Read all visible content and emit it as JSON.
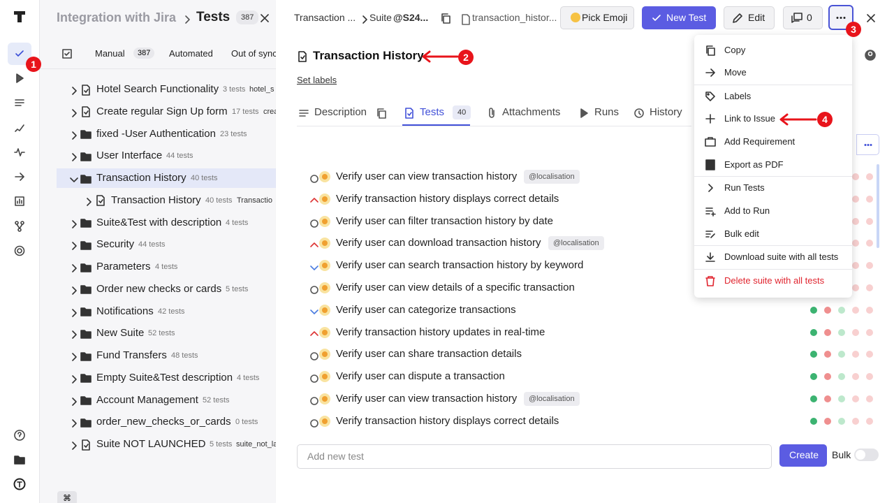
{
  "sidebar": {
    "badge": "1"
  },
  "left_panel": {
    "project": "Integration with Jira",
    "section": "Tests",
    "count": 387,
    "shortcut": "⌘",
    "tabs": [
      {
        "label": "Manual",
        "count": 387
      },
      {
        "label": "Automated"
      },
      {
        "label": "Out of sync"
      }
    ],
    "tree": [
      {
        "name": "Hotel Search Functionality",
        "count": "3 tests",
        "code": "hotel_s",
        "kind": "suite"
      },
      {
        "name": "Create regular Sign Up form",
        "count": "17 tests",
        "code": "crea",
        "kind": "suite"
      },
      {
        "name": "fixed -User Authentication",
        "count": "23 tests",
        "kind": "folder"
      },
      {
        "name": "User Interface",
        "count": "44 tests",
        "kind": "folder"
      },
      {
        "name": "Transaction History",
        "count": "40 tests",
        "kind": "folder",
        "expanded": true,
        "selected": true
      },
      {
        "name": "Transaction History",
        "count": "40 tests",
        "code": "Transactio",
        "kind": "suite",
        "level": 1
      },
      {
        "name": "Suite&Test with description",
        "count": "4 tests",
        "kind": "folder"
      },
      {
        "name": "Security",
        "count": "44 tests",
        "kind": "folder"
      },
      {
        "name": "Parameters",
        "count": "4 tests",
        "kind": "folder"
      },
      {
        "name": "Order new checks or cards",
        "count": "5 tests",
        "kind": "folder"
      },
      {
        "name": "Notifications",
        "count": "42 tests",
        "kind": "folder"
      },
      {
        "name": "New Suite",
        "count": "52 tests",
        "kind": "folder"
      },
      {
        "name": "Fund Transfers",
        "count": "48 tests",
        "kind": "folder"
      },
      {
        "name": "Empty Suite&Test description",
        "count": "4 tests",
        "kind": "folder"
      },
      {
        "name": "Account Management",
        "count": "52 tests",
        "kind": "folder"
      },
      {
        "name": "order_new_checks_or_cards",
        "count": "0 tests",
        "kind": "folder"
      },
      {
        "name": "Suite NOT LAUNCHED",
        "count": "5 tests",
        "code": "suite_not_lau",
        "kind": "suite"
      }
    ]
  },
  "panel": {
    "breadcrumb": {
      "parent": "Transaction ...",
      "suite_label": "Suite",
      "suite_code": "@S24...",
      "file": "transaction_histor..."
    },
    "buttons": {
      "emoji": "Pick Emoji",
      "new_test": "New Test",
      "edit": "Edit",
      "comments": 0
    },
    "title": "Transaction History",
    "set_labels": "Set labels",
    "tabs": [
      {
        "label": "Description"
      },
      {
        "label": "Tests",
        "count": 40,
        "active": true
      },
      {
        "label": "Attachments"
      },
      {
        "label": "Runs"
      },
      {
        "label": "History"
      }
    ],
    "tests": [
      {
        "title": "Verify user can view transaction history",
        "tag": "@localisation",
        "priority": "normal"
      },
      {
        "title": "Verify transaction history displays correct details",
        "priority": "high"
      },
      {
        "title": "Verify user can filter transaction history by date",
        "priority": "normal"
      },
      {
        "title": "Verify user can download transaction history",
        "tag": "@localisation",
        "priority": "high"
      },
      {
        "title": "Verify user can search transaction history by keyword",
        "priority": "low"
      },
      {
        "title": "Verify user can view details of a specific transaction",
        "priority": "normal"
      },
      {
        "title": "Verify user can categorize transactions",
        "priority": "low"
      },
      {
        "title": "Verify transaction history updates in real-time",
        "priority": "high"
      },
      {
        "title": "Verify user can share transaction details",
        "priority": "normal"
      },
      {
        "title": "Verify user can dispute a transaction",
        "priority": "normal"
      },
      {
        "title": "Verify user can view transaction history",
        "tag": "@localisation",
        "priority": "normal"
      },
      {
        "title": "Verify transaction history displays correct details",
        "priority": "normal"
      }
    ],
    "new_test_placeholder": "Add new test",
    "create": "Create",
    "bulk": "Bulk"
  },
  "menu": [
    [
      "Copy",
      "Move"
    ],
    [
      "Labels",
      "Link to Issue",
      "Add Requirement",
      "Export as PDF"
    ],
    [
      "Run Tests",
      "Add to Run",
      "Bulk edit"
    ],
    [
      "Download suite with all tests"
    ],
    [
      "Delete suite with all tests"
    ]
  ],
  "annotations": [
    "1",
    "2",
    "3",
    "4"
  ]
}
